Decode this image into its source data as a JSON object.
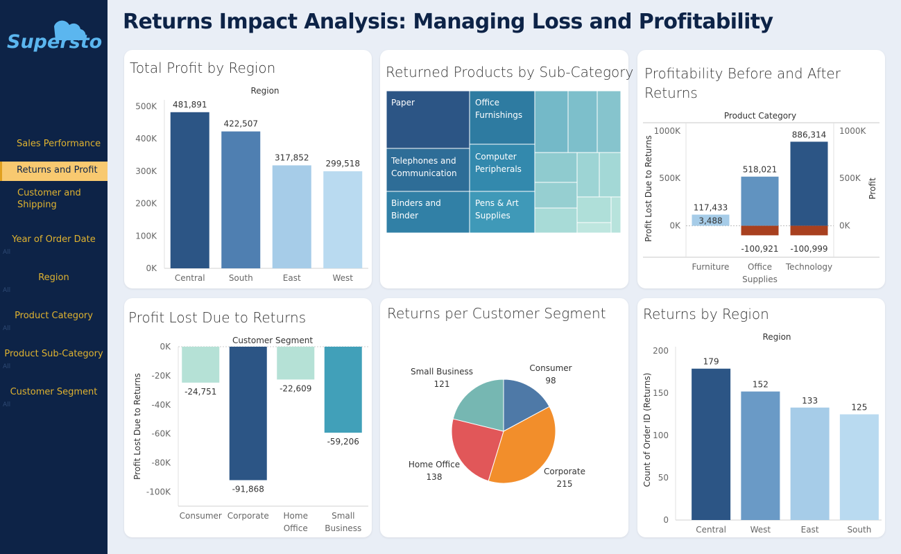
{
  "header": {
    "title": "Returns Impact Analysis: Managing Loss and Profitability",
    "logo_text": "Superstore"
  },
  "sidebar": {
    "nav": [
      {
        "label": "Sales Performance",
        "active": false
      },
      {
        "label": "Returns and Profit",
        "active": true
      },
      {
        "label": "Customer and\nShipping",
        "active": false
      }
    ],
    "filters": [
      {
        "label": "Year of Order Date",
        "value": "All"
      },
      {
        "label": "Region",
        "value": "All"
      },
      {
        "label": "Product Category",
        "value": "All"
      },
      {
        "label": "Product Sub-Category",
        "value": "All"
      },
      {
        "label": "Customer Segment",
        "value": "All"
      }
    ]
  },
  "colors": {
    "dark_blue": "#2c5585",
    "mid_blue": "#4f7fb1",
    "light_blue": "#a6cce8",
    "lighter_blue": "#b9daf0",
    "teal_light": "#b5e1d6",
    "teal": "#41a0b9",
    "red": "#a8401f",
    "orange": "#f28e2b",
    "coral": "#e15759",
    "sage": "#76b7b2",
    "pie_blue": "#4e79a7"
  },
  "chart_data": [
    {
      "id": "profit_by_region",
      "type": "bar",
      "title": "Total Profit by Region",
      "header": "Region",
      "categories": [
        "Central",
        "South",
        "East",
        "West"
      ],
      "values": [
        481891,
        422507,
        317852,
        299518
      ],
      "value_labels": [
        "481,891",
        "422,507",
        "317,852",
        "299,518"
      ],
      "ylim": [
        0,
        520000
      ],
      "yticks": [
        0,
        100000,
        200000,
        300000,
        400000,
        500000
      ],
      "ytick_labels": [
        "0K",
        "100K",
        "200K",
        "300K",
        "400K",
        "500K"
      ],
      "colors": [
        "#2c5585",
        "#4f7fb1",
        "#a6cce8",
        "#b9daf0"
      ]
    },
    {
      "id": "returned_by_subcategory",
      "type": "treemap",
      "title": "Returned Products by Sub-Category",
      "labels": [
        "Paper",
        "Office Furnishings",
        "Telephones and Communication",
        "Computer Peripherals",
        "Binders and Binder",
        "Pens & Art Supplies"
      ]
    },
    {
      "id": "profitability_before_after",
      "type": "bar",
      "title": "Profitability Before and After Returns",
      "header": "Product Category",
      "ylabel": "Profit Lost Due to Returns",
      "ylabel_right": "Profit",
      "categories": [
        "Furniture",
        "Office Supplies",
        "Technology"
      ],
      "series": [
        {
          "name": "Profit",
          "values": [
            117433,
            518021,
            886314
          ],
          "labels": [
            "117,433",
            "518,021",
            "886,314"
          ]
        },
        {
          "name": "Profit Lost Due to Returns",
          "values": [
            3488,
            -100921,
            -100999
          ],
          "labels": [
            "3,488",
            "-100,921",
            "-100,999"
          ]
        }
      ],
      "ylim": [
        -120000,
        1050000
      ],
      "yticks": [
        0,
        500000,
        1000000
      ],
      "ytick_labels": [
        "0K",
        "500K",
        "1000K"
      ]
    },
    {
      "id": "profit_lost_by_segment",
      "type": "bar",
      "title": "Profit Lost Due to Returns",
      "header": "Customer Segment",
      "ylabel": "Profit Lost Due to Returns",
      "categories": [
        "Consumer",
        "Corporate",
        "Home Office",
        "Small Business"
      ],
      "values": [
        -24751,
        -91868,
        -22609,
        -59206
      ],
      "value_labels": [
        "-24,751",
        "-91,868",
        "-22,609",
        "-59,206"
      ],
      "ylim": [
        -105000,
        0
      ],
      "yticks": [
        0,
        -20000,
        -40000,
        -60000,
        -80000,
        -100000
      ],
      "ytick_labels": [
        "0K",
        "-20K",
        "-40K",
        "-60K",
        "-80K",
        "-100K"
      ],
      "colors": [
        "#b5e1d6",
        "#2c5585",
        "#b5e1d6",
        "#41a0b9"
      ]
    },
    {
      "id": "returns_per_segment",
      "type": "pie",
      "title": "Returns per Customer Segment",
      "categories": [
        "Consumer",
        "Corporate",
        "Home Office",
        "Small Business"
      ],
      "values": [
        98,
        215,
        138,
        121
      ],
      "colors": [
        "#4e79a7",
        "#f28e2b",
        "#e15759",
        "#76b7b2"
      ]
    },
    {
      "id": "returns_by_region",
      "type": "bar",
      "title": "Returns by Region",
      "header": "Region",
      "ylabel": "Count of Order ID (Returns)",
      "categories": [
        "Central",
        "West",
        "East",
        "South"
      ],
      "values": [
        179,
        152,
        133,
        125
      ],
      "ylim": [
        0,
        205
      ],
      "yticks": [
        0,
        50,
        100,
        150,
        200
      ],
      "colors": [
        "#2c5585",
        "#6a9ac6",
        "#a6cce8",
        "#b9daf0"
      ]
    }
  ]
}
